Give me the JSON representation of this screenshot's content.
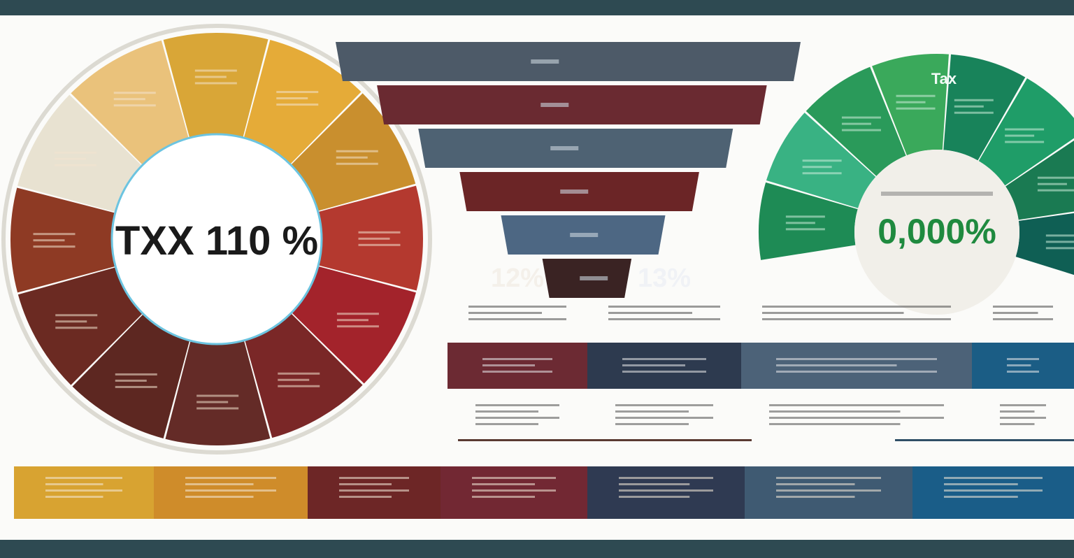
{
  "chart_data": [
    {
      "type": "pie",
      "center_label": "TXX 110 %",
      "colors": [
        "#eac27b",
        "#d9a637",
        "#e5ab38",
        "#c98f2e",
        "#b4392f",
        "#a3232b",
        "#7a2727",
        "#642b27",
        "#5d2721",
        "#6b2a22",
        "#8e3a24",
        "#e8e2d1"
      ],
      "segment_count": 12
    },
    {
      "type": "bar",
      "orientation": "horizontal",
      "labels": [
        "",
        "",
        "",
        "",
        "12%",
        "13%"
      ],
      "values": [
        6,
        5,
        4,
        3,
        2,
        1
      ],
      "colors": [
        "#4d5a68",
        "#6a2a31",
        "#4e6273",
        "#6b2526",
        "#4d6783",
        "#3a2323"
      ],
      "callouts": [
        "12%",
        "13%"
      ]
    },
    {
      "type": "pie",
      "center_label": "0,000%",
      "center_caption": "",
      "segment_title": "Tax",
      "colors": [
        "#1e8b55",
        "#39b283",
        "#2a9a5a",
        "#3aa95b",
        "#18835a",
        "#1f9d68",
        "#1a7a52",
        "#0f5f54"
      ],
      "segment_count": 8
    }
  ],
  "table": {
    "row_colors": [
      "#6c2a33",
      "#2d3a4f",
      "#4c6278",
      "#1b5d85"
    ],
    "note_text": [
      "",
      "",
      "",
      ""
    ]
  },
  "footer_strip": {
    "colors": [
      "#d8a331",
      "#cf8c2a",
      "#6d2626",
      "#722833",
      "#2f3a52",
      "#3f5a72",
      "#1a5d88"
    ]
  }
}
